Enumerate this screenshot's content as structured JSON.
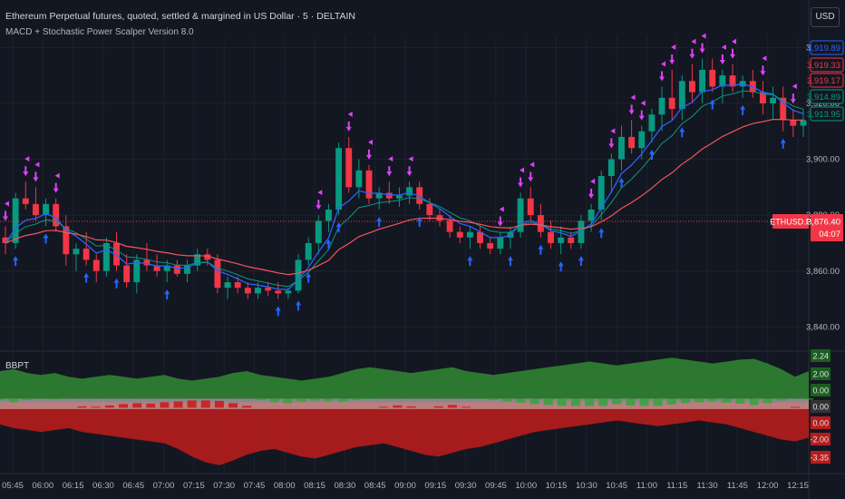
{
  "header": {
    "symbol_title": "Ethereum Perpetual futures, quoted, settled & margined in US Dollar · 5 · DELTAIN",
    "strategy_title": "MACD + Stochastic Power Scalper Version 8.0",
    "currency_button": "USD"
  },
  "indicator": {
    "title": "BBPT"
  },
  "price_axis": {
    "ticks": [
      "3,940.00",
      "3,920.00",
      "3,900.00",
      "3,880.00",
      "3,860.00",
      "3,840.00"
    ],
    "badges": [
      {
        "label": "3,919.89",
        "color": "#2962ff"
      },
      {
        "label": "3,919.33",
        "color": "#f23645"
      },
      {
        "label": "3,919.17",
        "color": "#f23645"
      },
      {
        "label": "3,914.89",
        "color": "#089981"
      },
      {
        "label": "3,913.95",
        "color": "#089981"
      }
    ],
    "last_price": {
      "symbol": "ETHUSD.P",
      "price": "3,876.40",
      "countdown": "04:07",
      "color": "#f23645"
    }
  },
  "indicator_axis": {
    "labels": [
      {
        "label": "2.24",
        "color": "#1b5e20"
      },
      {
        "label": "2.00",
        "color": "#1b5e20"
      },
      {
        "label": "0.00",
        "color": "#1b5e20"
      },
      {
        "label": "0.00",
        "color": "#333333"
      },
      {
        "label": "0.00",
        "color": "#b71c1c"
      },
      {
        "label": "-2.00",
        "color": "#b71c1c"
      },
      {
        "label": "-3.35",
        "color": "#b71c1c"
      }
    ]
  },
  "time_axis": {
    "ticks": [
      "05:45",
      "06:00",
      "06:15",
      "06:30",
      "06:45",
      "07:00",
      "07:15",
      "07:30",
      "07:45",
      "08:00",
      "08:15",
      "08:30",
      "08:45",
      "09:00",
      "09:15",
      "09:30",
      "09:45",
      "10:00",
      "10:15",
      "10:30",
      "10:45",
      "11:00",
      "11:15",
      "11:30",
      "11:45",
      "12:00",
      "12:15"
    ]
  },
  "colors": {
    "up": "#089981",
    "down": "#f23645",
    "signal": "#e040fb",
    "arrow": "#2962ff",
    "ema_fast": "#2962ff",
    "ema_slow": "#f7525f"
  },
  "chart_data": {
    "type": "candlestick",
    "y_range": [
      3832,
      3944
    ],
    "candles": [
      [
        3872,
        3876,
        3866,
        3870
      ],
      [
        3870,
        3888,
        3868,
        3886
      ],
      [
        3886,
        3892,
        3882,
        3884
      ],
      [
        3884,
        3890,
        3878,
        3880
      ],
      [
        3880,
        3886,
        3876,
        3884
      ],
      [
        3884,
        3886,
        3874,
        3876
      ],
      [
        3876,
        3880,
        3862,
        3866
      ],
      [
        3866,
        3870,
        3860,
        3868
      ],
      [
        3868,
        3874,
        3862,
        3864
      ],
      [
        3864,
        3866,
        3856,
        3860
      ],
      [
        3860,
        3872,
        3858,
        3870
      ],
      [
        3870,
        3874,
        3860,
        3862
      ],
      [
        3862,
        3866,
        3854,
        3856
      ],
      [
        3856,
        3866,
        3852,
        3864
      ],
      [
        3864,
        3870,
        3860,
        3862
      ],
      [
        3862,
        3866,
        3858,
        3860
      ],
      [
        3860,
        3864,
        3856,
        3862
      ],
      [
        3862,
        3864,
        3858,
        3859
      ],
      [
        3859,
        3864,
        3856,
        3862
      ],
      [
        3862,
        3868,
        3860,
        3866
      ],
      [
        3866,
        3868,
        3862,
        3864
      ],
      [
        3864,
        3866,
        3852,
        3854
      ],
      [
        3854,
        3858,
        3850,
        3856
      ],
      [
        3856,
        3858,
        3852,
        3854
      ],
      [
        3854,
        3856,
        3850,
        3852
      ],
      [
        3852,
        3856,
        3850,
        3854
      ],
      [
        3854,
        3856,
        3851,
        3853
      ],
      [
        3853,
        3856,
        3850,
        3852
      ],
      [
        3852,
        3854,
        3850,
        3853
      ],
      [
        3853,
        3866,
        3852,
        3864
      ],
      [
        3864,
        3872,
        3862,
        3870
      ],
      [
        3870,
        3880,
        3866,
        3878
      ],
      [
        3878,
        3884,
        3874,
        3882
      ],
      [
        3882,
        3906,
        3880,
        3904
      ],
      [
        3904,
        3908,
        3888,
        3890
      ],
      [
        3890,
        3900,
        3886,
        3896
      ],
      [
        3896,
        3898,
        3884,
        3886
      ],
      [
        3886,
        3890,
        3882,
        3888
      ],
      [
        3888,
        3892,
        3884,
        3886
      ],
      [
        3886,
        3890,
        3883,
        3887
      ],
      [
        3887,
        3892,
        3884,
        3890
      ],
      [
        3890,
        3892,
        3882,
        3884
      ],
      [
        3884,
        3886,
        3878,
        3880
      ],
      [
        3880,
        3882,
        3876,
        3878
      ],
      [
        3878,
        3880,
        3872,
        3874
      ],
      [
        3874,
        3876,
        3870,
        3872
      ],
      [
        3872,
        3876,
        3868,
        3874
      ],
      [
        3874,
        3876,
        3868,
        3870
      ],
      [
        3870,
        3872,
        3866,
        3868
      ],
      [
        3868,
        3874,
        3866,
        3872
      ],
      [
        3872,
        3876,
        3868,
        3874
      ],
      [
        3874,
        3888,
        3872,
        3886
      ],
      [
        3886,
        3890,
        3878,
        3880
      ],
      [
        3880,
        3884,
        3872,
        3874
      ],
      [
        3874,
        3878,
        3868,
        3870
      ],
      [
        3870,
        3876,
        3866,
        3872
      ],
      [
        3872,
        3874,
        3868,
        3870
      ],
      [
        3870,
        3880,
        3868,
        3878
      ],
      [
        3878,
        3884,
        3874,
        3882
      ],
      [
        3882,
        3896,
        3878,
        3894
      ],
      [
        3894,
        3902,
        3888,
        3900
      ],
      [
        3900,
        3912,
        3896,
        3908
      ],
      [
        3908,
        3914,
        3902,
        3904
      ],
      [
        3904,
        3912,
        3900,
        3910
      ],
      [
        3910,
        3918,
        3906,
        3916
      ],
      [
        3916,
        3926,
        3910,
        3922
      ],
      [
        3922,
        3932,
        3914,
        3918
      ],
      [
        3918,
        3930,
        3914,
        3928
      ],
      [
        3928,
        3934,
        3920,
        3924
      ],
      [
        3924,
        3936,
        3920,
        3932
      ],
      [
        3932,
        3936,
        3924,
        3926
      ],
      [
        3926,
        3932,
        3920,
        3930
      ],
      [
        3930,
        3934,
        3924,
        3926
      ],
      [
        3926,
        3930,
        3922,
        3928
      ],
      [
        3928,
        3932,
        3922,
        3924
      ],
      [
        3924,
        3928,
        3916,
        3920
      ],
      [
        3920,
        3926,
        3914,
        3922
      ],
      [
        3922,
        3926,
        3910,
        3914
      ],
      [
        3914,
        3918,
        3908,
        3912
      ],
      [
        3912,
        3918,
        3908,
        3914
      ]
    ]
  },
  "indicator_data": {
    "upper_band": [
      1.6,
      1.7,
      1.5,
      1.4,
      1.5,
      1.3,
      1.2,
      1.3,
      1.4,
      1.3,
      1.2,
      1.3,
      1.4,
      1.2,
      1.1,
      1.2,
      1.3,
      1.5,
      1.6,
      1.4,
      1.3,
      1.2,
      1.1,
      1.2,
      1.3,
      1.5,
      1.7,
      1.8,
      1.7,
      1.6,
      1.5,
      1.6,
      1.7,
      1.8,
      1.6,
      1.5,
      1.4,
      1.5,
      1.6,
      1.7,
      1.8,
      1.9,
      2.0,
      2.1,
      2.0,
      1.9,
      2.0,
      2.1,
      2.2,
      2.3,
      2.2,
      2.1,
      2.0,
      2.1,
      2.2,
      2.24,
      2.0,
      1.7,
      1.3,
      1.6
    ],
    "lower_band": [
      -1.2,
      -1.4,
      -1.5,
      -1.6,
      -1.5,
      -1.4,
      -1.6,
      -1.7,
      -1.8,
      -1.9,
      -2.0,
      -2.1,
      -2.2,
      -2.5,
      -2.9,
      -3.2,
      -3.35,
      -3.1,
      -2.8,
      -2.6,
      -2.5,
      -2.7,
      -2.9,
      -3.0,
      -2.8,
      -2.6,
      -2.4,
      -2.3,
      -2.2,
      -2.4,
      -2.6,
      -2.8,
      -2.9,
      -2.7,
      -2.5,
      -2.4,
      -2.2,
      -2.0,
      -1.8,
      -1.6,
      -1.5,
      -1.4,
      -1.3,
      -1.2,
      -1.1,
      -1.0,
      -1.1,
      -1.2,
      -1.3,
      -1.2,
      -1.1,
      -1.0,
      -1.1,
      -1.2,
      -1.4,
      -1.6,
      -1.8,
      -2.0,
      -2.1,
      -1.9
    ],
    "oscillator": [
      0.4,
      0.8,
      0.3,
      0.1,
      0.2,
      0.0,
      -0.3,
      -0.2,
      -0.5,
      -0.8,
      -1.0,
      -0.9,
      -1.2,
      -1.4,
      -1.6,
      -1.8,
      -1.5,
      -1.0,
      -0.4,
      0.3,
      0.8,
      1.0,
      0.7,
      0.4,
      0.5,
      0.6,
      0.3,
      0.1,
      -0.2,
      -0.5,
      -0.3,
      0.0,
      -0.3,
      -0.6,
      -0.2,
      0.1,
      0.3,
      0.6,
      0.9,
      1.2,
      1.4,
      1.6,
      1.8,
      1.9,
      1.6,
      1.2,
      1.5,
      1.8,
      1.6,
      1.3,
      1.0,
      0.8,
      0.5,
      0.9,
      1.1,
      1.4,
      1.0,
      0.4,
      -0.2,
      0.2
    ]
  }
}
